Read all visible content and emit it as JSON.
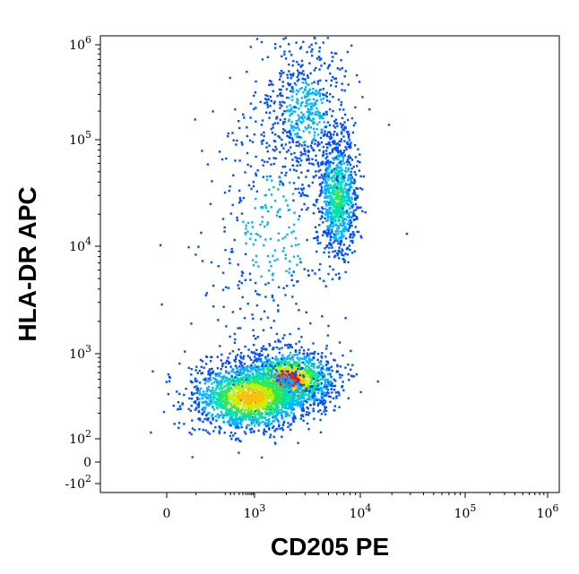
{
  "chart_data": {
    "type": "scatter",
    "style": "density dot plot (flow cytometry)",
    "xlabel": "CD205 PE",
    "ylabel": "HLA-DR APC",
    "x_scale": "biexponential (log)",
    "y_scale": "biexponential (log)",
    "xlim": [
      -200,
      1000000
    ],
    "ylim": [
      -200,
      1000000
    ],
    "x_ticks": [
      {
        "value": 0,
        "label": "0"
      },
      {
        "value": 1000,
        "base": "10",
        "exp": "3"
      },
      {
        "value": 10000,
        "base": "10",
        "exp": "4"
      },
      {
        "value": 100000,
        "base": "10",
        "exp": "5"
      },
      {
        "value": 1000000,
        "base": "10",
        "exp": "6"
      }
    ],
    "y_ticks": [
      {
        "value": -100,
        "base": "-10",
        "exp": "2"
      },
      {
        "value": 0,
        "label": "0"
      },
      {
        "value": 100,
        "base": "10",
        "exp": "2"
      },
      {
        "value": 1000,
        "base": "10",
        "exp": "3"
      },
      {
        "value": 10000,
        "base": "10",
        "exp": "4"
      },
      {
        "value": 100000,
        "base": "10",
        "exp": "5"
      },
      {
        "value": 1000000,
        "base": "10",
        "exp": "6"
      }
    ],
    "populations": [
      {
        "center": [
          2000,
          500
        ],
        "spread": [
          0.22,
          0.14
        ],
        "weight": 0.3,
        "peak": "red"
      },
      {
        "center": [
          700,
          320
        ],
        "spread": [
          0.28,
          0.16
        ],
        "weight": 0.35,
        "peak": "yellow"
      },
      {
        "center": [
          6000,
          30000
        ],
        "spread": [
          0.09,
          0.28
        ],
        "weight": 0.16,
        "peak": "cyan"
      },
      {
        "center": [
          3000,
          200000
        ],
        "spread": [
          0.22,
          0.35
        ],
        "weight": 0.12,
        "peak": "blue"
      },
      {
        "center": [
          1500,
          15000
        ],
        "spread": [
          0.35,
          0.6
        ],
        "weight": 0.07,
        "peak": "blue"
      }
    ],
    "grid": false,
    "legend": "none"
  }
}
